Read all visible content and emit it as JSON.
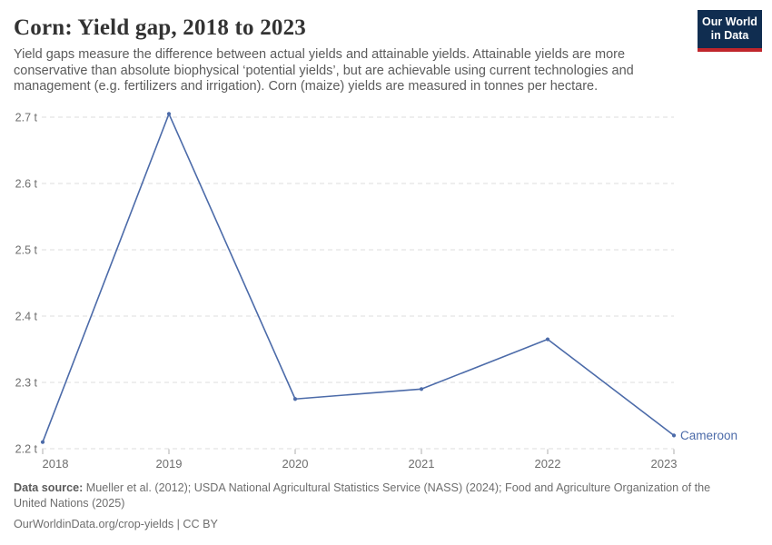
{
  "header": {
    "title": "Corn: Yield gap, 2018 to 2023",
    "subtitle_lines": [
      "Yield gaps measure the difference between actual yields and attainable yields. Attainable yields are more",
      "conservative than absolute biophysical ‘potential yields’, but are achievable using current technologies and",
      "management (e.g. fertilizers and irrigation). Corn (maize) yields are measured in tonnes per hectare."
    ],
    "logo": {
      "line1": "Our World",
      "line2": "in Data",
      "bg_color": "#102D50",
      "bar_color": "#C0262C"
    }
  },
  "chart_data": {
    "type": "line",
    "title": "Corn: Yield gap, 2018 to 2023",
    "unit": "t",
    "x": [
      2018,
      2019,
      2020,
      2021,
      2022,
      2023
    ],
    "series": [
      {
        "name": "Cameroon",
        "values": [
          2.21,
          2.705,
          2.275,
          2.29,
          2.365,
          2.22
        ]
      }
    ],
    "ylim": [
      2.2,
      2.7
    ],
    "yticks": [
      2.2,
      2.3,
      2.4,
      2.5,
      2.6,
      2.7
    ],
    "grid": true,
    "legend_position": "end-of-line",
    "line_color": "#4C6BA9",
    "entity_label_color": "#4C6BA9",
    "gridline_color": "#dcdcdc",
    "tick_label_color": "#6e6e6e",
    "tick_mark_color": "#adadad"
  },
  "footer": {
    "source_label": "Data source:",
    "sources": "Mueller et al. (2012); USDA National Agricultural Statistics Service (NASS) (2024); Food and Agriculture Organization of the United Nations (2025)",
    "license": "OurWorldinData.org/crop-yields | CC BY"
  }
}
